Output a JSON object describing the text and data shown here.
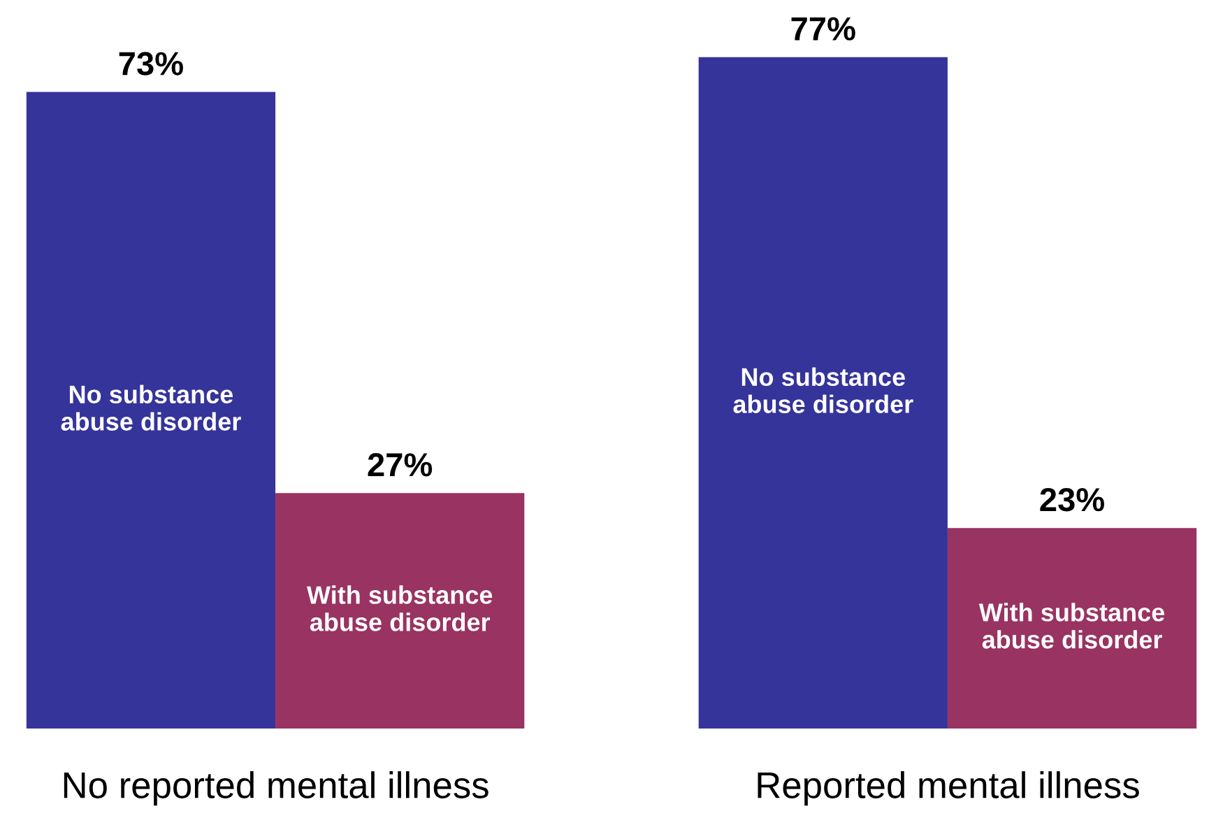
{
  "chart_data": {
    "type": "bar",
    "categories": [
      "No reported mental illness",
      "Reported mental illness"
    ],
    "series": [
      {
        "name": "No substance abuse disorder",
        "color": "#35349a",
        "values": [
          73,
          77
        ],
        "value_labels": [
          "73%",
          "77%"
        ]
      },
      {
        "name": "With substance abuse disorder",
        "color": "#993361",
        "values": [
          27,
          23
        ],
        "value_labels": [
          "27%",
          "23%"
        ]
      }
    ],
    "grid": false,
    "legend": false,
    "tick_labels": "x"
  }
}
